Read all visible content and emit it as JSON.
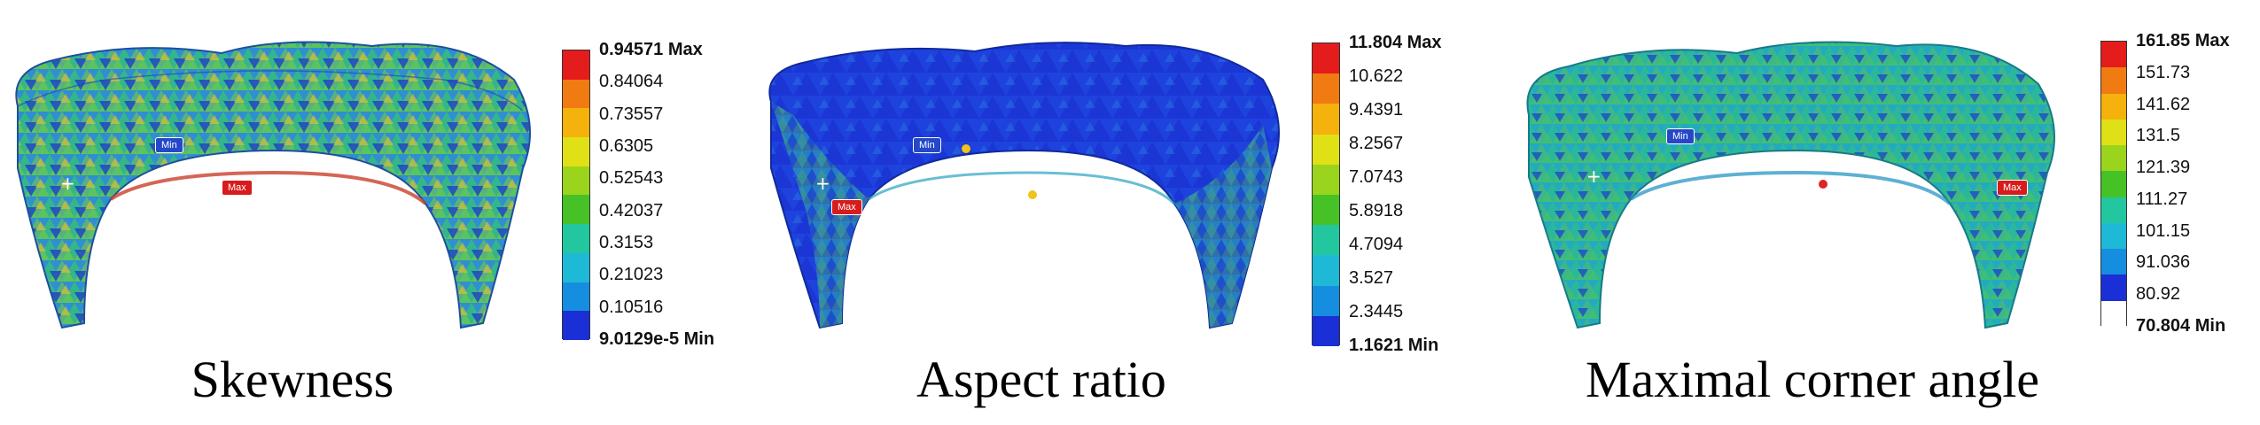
{
  "panels": [
    {
      "caption": "Skewness",
      "legend": [
        "0.94571 Max",
        "0.84064",
        "0.73557",
        "0.6305",
        "0.52543",
        "0.42037",
        "0.3153",
        "0.21023",
        "0.10516",
        "9.0129e-5 Min"
      ],
      "colors": [
        "#e51c1c",
        "#f07b12",
        "#f5b10c",
        "#dfe016",
        "#9bd41d",
        "#46c227",
        "#22c79f",
        "#1fb9d8",
        "#168ee0",
        "#1a2fd6"
      ],
      "markers": {
        "min": "Min",
        "max": "Max"
      }
    },
    {
      "caption": "Aspect ratio",
      "legend": [
        "11.804 Max",
        "10.622",
        "9.4391",
        "8.2567",
        "7.0743",
        "5.8918",
        "4.7094",
        "3.527",
        "2.3445",
        "1.1621 Min"
      ],
      "colors": [
        "#e51c1c",
        "#f07b12",
        "#f5b10c",
        "#dfe016",
        "#9bd41d",
        "#46c227",
        "#22c79f",
        "#1fb9d8",
        "#168ee0",
        "#1a2fd6"
      ],
      "markers": {
        "min": "Min",
        "max": "Max"
      }
    },
    {
      "caption": "Maximal corner angle",
      "legend": [
        "161.85 Max",
        "151.73",
        "141.62",
        "131.5",
        "121.39",
        "111.27",
        "101.15",
        "91.036",
        "80.92",
        "70.804 Min"
      ],
      "colors": [
        "#e51c1c",
        "#f07b12",
        "#f5b10c",
        "#dfe016",
        "#9bd41d",
        "#46c227",
        "#22c79f",
        "#1fb9d8",
        "#168ee0",
        "#1a2fd6",
        "#ffffff"
      ],
      "markers": {
        "min": "Min",
        "max": "Max"
      }
    }
  ]
}
